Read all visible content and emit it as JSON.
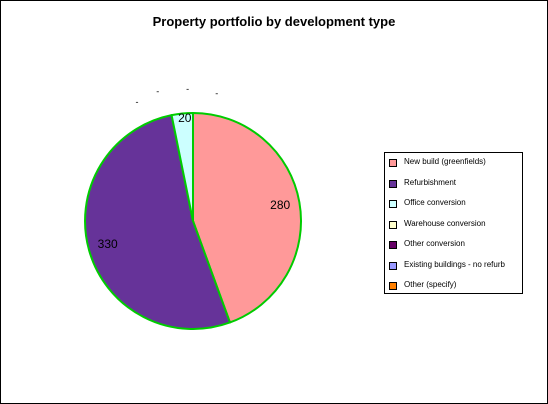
{
  "chart_data": {
    "type": "pie",
    "title": "Property portfolio by development type",
    "categories": [
      "New build (greenfields)",
      "Refurbishment",
      "Office conversion",
      "Warehouse conversion",
      "Other conversion",
      "Existing buildings - no refurb",
      "Other (specify)"
    ],
    "values": [
      280,
      330,
      20,
      0,
      0,
      0,
      0
    ],
    "data_labels": [
      "280",
      "330",
      "20",
      "-",
      "-",
      "-",
      "-"
    ],
    "colors": [
      "#ff9999",
      "#663399",
      "#ccffff",
      "#ffffcc",
      "#660066",
      "#9999ff",
      "#ff8000"
    ],
    "slice_border_color": "#00cc00",
    "legend_position": "right"
  }
}
